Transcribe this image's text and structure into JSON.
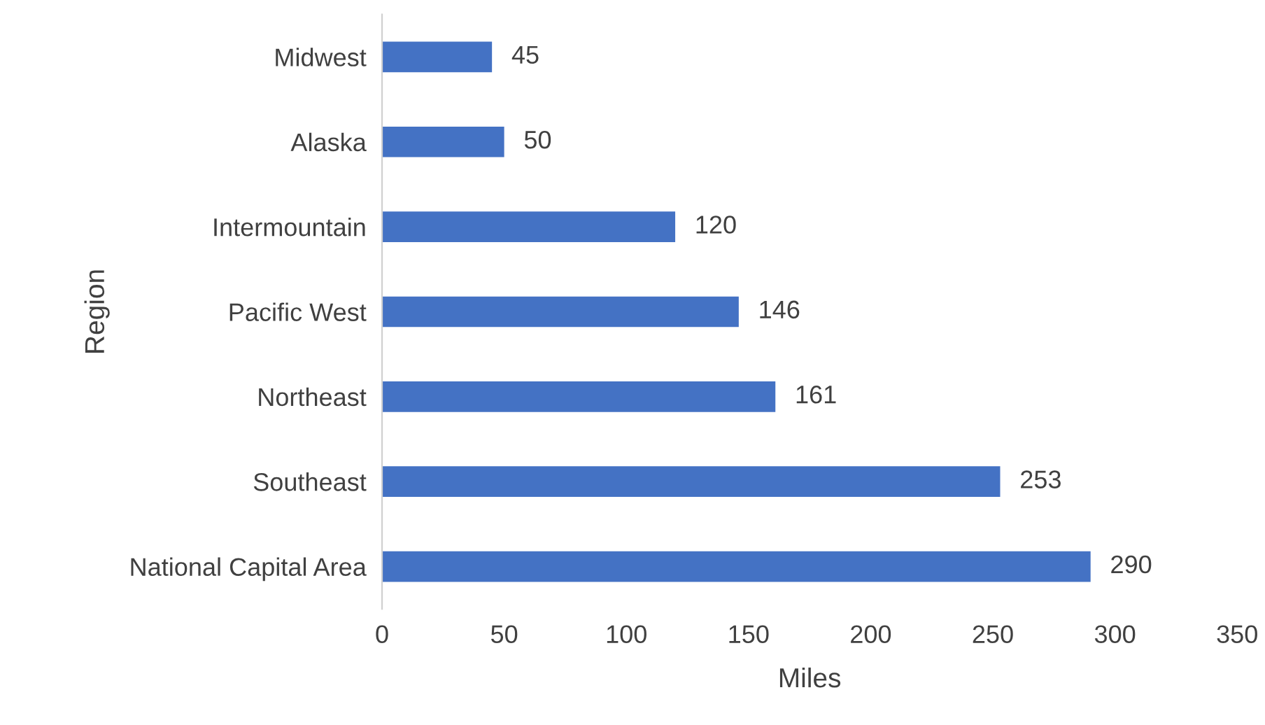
{
  "chart_data": {
    "type": "bar",
    "orientation": "horizontal",
    "xlabel": "Miles",
    "ylabel": "Region",
    "categories": [
      "Midwest",
      "Alaska",
      "Intermountain",
      "Pacific West",
      "Northeast",
      "Southeast",
      "National Capital Area"
    ],
    "values": [
      45,
      50,
      120,
      146,
      161,
      253,
      290
    ],
    "color": "#4472c4",
    "xlim": [
      0,
      350
    ],
    "xticks": [
      0,
      50,
      100,
      150,
      200,
      250,
      300,
      350
    ],
    "grid": false,
    "data_labels": true,
    "legend": false
  }
}
